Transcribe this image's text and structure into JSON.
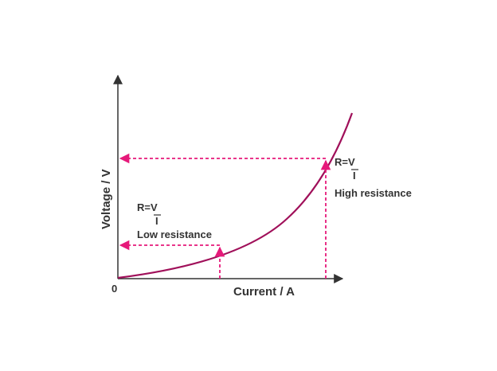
{
  "axes": {
    "x_label": "Current / A",
    "y_label": "Voltage / V",
    "origin_label": "0"
  },
  "annotations": {
    "low": {
      "formula_top": "R=V",
      "formula_bottom": "I",
      "text": "Low resistance"
    },
    "high": {
      "formula_top": "R=V",
      "formula_bottom": "I",
      "text": "High resistance"
    }
  },
  "colors": {
    "curve": "#a0105a",
    "guides": "#e6197a",
    "axes": "#333333",
    "text": "#333333"
  }
}
